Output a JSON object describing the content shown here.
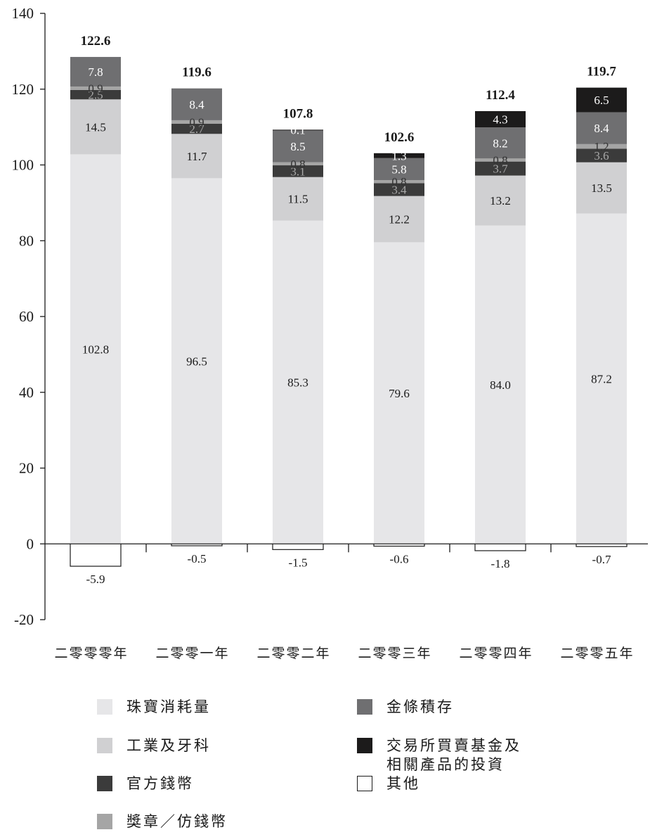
{
  "chart_data": {
    "type": "bar",
    "stacked": true,
    "categories": [
      "二零零零年",
      "二零零一年",
      "二零零二年",
      "二零零三年",
      "二零零四年",
      "二零零五年"
    ],
    "ylim": [
      -20,
      140
    ],
    "yticks": [
      -20,
      0,
      20,
      40,
      60,
      80,
      100,
      120,
      140
    ],
    "grid": false,
    "legend_position": "bottom",
    "series": [
      {
        "name": "珠寶消耗量",
        "color": "#e6e6e8",
        "text_color": "#1a1a1a",
        "values": [
          102.8,
          96.5,
          85.3,
          79.6,
          84.0,
          87.2
        ],
        "labels": [
          "102.8",
          "96.5",
          "85.3",
          "79.6",
          "84.0",
          "87.2"
        ]
      },
      {
        "name": "工業及牙科",
        "color": "#d0d0d2",
        "text_color": "#1a1a1a",
        "values": [
          14.5,
          11.7,
          11.5,
          12.2,
          13.2,
          13.5
        ],
        "labels": [
          "14.5",
          "11.7",
          "11.5",
          "12.2",
          "13.2",
          "13.5"
        ]
      },
      {
        "name": "官方錢幣",
        "color": "#3b3b3b",
        "text_color": "#a8a8a8",
        "values": [
          2.5,
          2.7,
          3.1,
          3.4,
          3.7,
          3.6
        ],
        "labels": [
          "2.5",
          "2.7",
          "3.1",
          "3.4",
          "3.7",
          "3.6"
        ]
      },
      {
        "name": "獎章／仿錢幣",
        "color": "#a5a5a5",
        "text_color": "#333333",
        "values": [
          0.9,
          0.9,
          0.8,
          0.8,
          0.8,
          1.2
        ],
        "labels": [
          "0.9",
          "0.9",
          "0.8",
          "0.8",
          "0.8",
          "1.2"
        ]
      },
      {
        "name": "金條積存",
        "color": "#6f6f71",
        "text_color": "#ffffff",
        "values": [
          7.8,
          8.4,
          8.5,
          5.8,
          8.2,
          8.4
        ],
        "labels": [
          "7.8",
          "8.4",
          "8.5",
          "5.8",
          "8.2",
          "8.4"
        ]
      },
      {
        "name": "交易所買賣基金及\n相關產品的投資",
        "color": "#1c1b1b",
        "text_color": "#ffffff",
        "values": [
          0,
          0,
          0.1,
          1.3,
          4.3,
          6.5
        ],
        "labels": [
          "",
          "",
          "0.1",
          "1.3",
          "4.3",
          "6.5"
        ]
      },
      {
        "name": "其他",
        "color": "#ffffff",
        "text_color": "#1a1a1a",
        "values": [
          -5.9,
          -0.5,
          -1.5,
          -0.6,
          -1.8,
          -0.7
        ],
        "labels": [
          "-5.9",
          "-0.5",
          "-1.5",
          "-0.6",
          "-1.8",
          "-0.7"
        ]
      }
    ],
    "totals": [
      122.6,
      119.6,
      107.8,
      102.6,
      112.4,
      119.7
    ],
    "total_labels": [
      "122.6",
      "119.6",
      "107.8",
      "102.6",
      "112.4",
      "119.7"
    ]
  }
}
